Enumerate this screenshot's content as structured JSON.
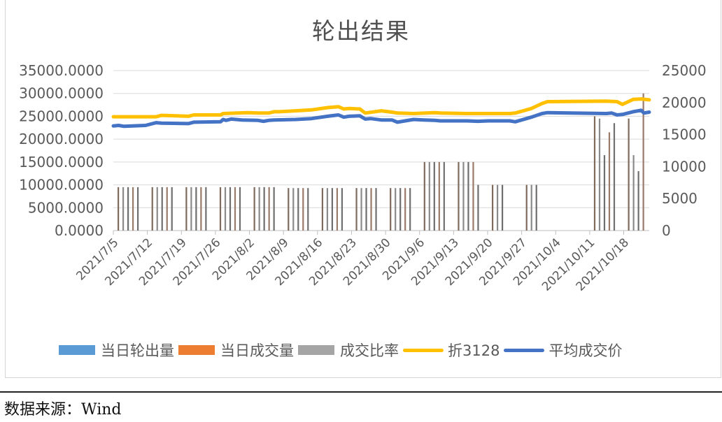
{
  "header": {
    "title": "轮出结果"
  },
  "legend": [
    {
      "label": "当日轮出量",
      "color": "#5b9bd5",
      "kind": "box"
    },
    {
      "label": "当日成交量",
      "color": "#ed7d31",
      "kind": "box"
    },
    {
      "label": "成交比率",
      "color": "#a5a5a5",
      "kind": "box"
    },
    {
      "label": "折3128",
      "color": "#ffc000",
      "kind": "line"
    },
    {
      "label": "平均成交价",
      "color": "#4472c4",
      "kind": "line"
    }
  ],
  "footer": {
    "source": "数据来源：Wind"
  },
  "chart_data": {
    "type": "bar+line",
    "title": "轮出结果",
    "xlabel": "",
    "ylabel_left": "",
    "ylabel_right": "",
    "left_axis": {
      "min": 0,
      "max": 35000,
      "step": 5000,
      "tick_labels": [
        "0.0000",
        "5000.0000",
        "10000.0000",
        "15000.0000",
        "20000.0000",
        "25000.0000",
        "30000.0000",
        "35000.0000"
      ]
    },
    "right_axis": {
      "min": 0,
      "max": 25000,
      "step": 5000,
      "tick_labels": [
        "0",
        "5000",
        "10000",
        "15000",
        "20000",
        "25000"
      ]
    },
    "categories": [
      "2021/7/5",
      "2021/7/12",
      "2021/7/19",
      "2021/7/26",
      "2021/8/2",
      "2021/8/9",
      "2021/8/16",
      "2021/8/23",
      "2021/8/30",
      "2021/9/6",
      "2021/9/13",
      "2021/9/20",
      "2021/9/27",
      "2021/10/4",
      "2021/10/11",
      "2021/10/18"
    ],
    "grid": true,
    "legend_position": "bottom",
    "weekly_bar_groups_left_axis": [
      {
        "week": "2021/7/5",
        "value": 9500,
        "days": 5
      },
      {
        "week": "2021/7/12",
        "value": 9500,
        "days": 5
      },
      {
        "week": "2021/7/19",
        "value": 9500,
        "days": 5
      },
      {
        "week": "2021/7/26",
        "value": 9500,
        "days": 5
      },
      {
        "week": "2021/8/2",
        "value": 9500,
        "days": 5
      },
      {
        "week": "2021/8/9",
        "value": 9300,
        "days": 5
      },
      {
        "week": "2021/8/16",
        "value": 9300,
        "days": 5
      },
      {
        "week": "2021/8/23",
        "value": 9300,
        "days": 5
      },
      {
        "week": "2021/8/30",
        "value": 9300,
        "days": 5
      },
      {
        "week": "2021/9/6",
        "value": 15000,
        "days": 5
      },
      {
        "week": "2021/9/13",
        "value": 15000,
        "days": 4,
        "extra": 10000
      },
      {
        "week": "2021/9/20",
        "value": 10000,
        "days": 3
      },
      {
        "week": "2021/9/27",
        "value": 10000,
        "days": 3
      },
      {
        "week": "2021/10/4",
        "value": 0,
        "days": 0
      },
      {
        "week": "2021/10/11",
        "values": [
          25000,
          24500,
          16500,
          21500,
          23500
        ],
        "days": 5
      },
      {
        "week": "2021/10/18",
        "values": [
          24500,
          16500,
          13000,
          30000
        ],
        "days": 4
      }
    ],
    "series": [
      {
        "name": "折3128",
        "color": "#ffc000",
        "axis": "left_scale_values",
        "x_frac": [
          0,
          0.04,
          0.08,
          0.09,
          0.14,
          0.15,
          0.2,
          0.205,
          0.25,
          0.27,
          0.29,
          0.3,
          0.31,
          0.34,
          0.37,
          0.4,
          0.42,
          0.43,
          0.44,
          0.46,
          0.47,
          0.5,
          0.52,
          0.53,
          0.56,
          0.6,
          0.61,
          0.66,
          0.7,
          0.74,
          0.75,
          0.78,
          0.8,
          0.81,
          0.92,
          0.94,
          0.95,
          0.97,
          0.985,
          1.0
        ],
        "values": [
          24900,
          24900,
          24900,
          25200,
          25000,
          25300,
          25300,
          25600,
          25800,
          25700,
          25700,
          26000,
          26000,
          26200,
          26400,
          26900,
          27100,
          26600,
          26700,
          26600,
          25700,
          26200,
          25900,
          25700,
          25600,
          25800,
          25700,
          25600,
          25600,
          25600,
          25700,
          26700,
          27800,
          28200,
          28300,
          28200,
          27600,
          28700,
          28800,
          28600
        ]
      },
      {
        "name": "平均成交价",
        "color": "#4472c4",
        "axis": "left_scale_values",
        "x_frac": [
          0,
          0.01,
          0.02,
          0.06,
          0.08,
          0.09,
          0.14,
          0.15,
          0.2,
          0.205,
          0.21,
          0.22,
          0.24,
          0.27,
          0.28,
          0.29,
          0.3,
          0.34,
          0.37,
          0.4,
          0.42,
          0.43,
          0.44,
          0.46,
          0.47,
          0.48,
          0.5,
          0.52,
          0.53,
          0.56,
          0.58,
          0.6,
          0.61,
          0.66,
          0.68,
          0.7,
          0.74,
          0.75,
          0.78,
          0.8,
          0.81,
          0.92,
          0.93,
          0.94,
          0.95,
          0.97,
          0.985,
          0.99,
          1.0
        ],
        "values": [
          22900,
          23000,
          22800,
          23000,
          23600,
          23500,
          23400,
          23700,
          23800,
          24300,
          24100,
          24400,
          24200,
          24100,
          23900,
          24100,
          24200,
          24300,
          24500,
          25000,
          25300,
          24800,
          25000,
          25100,
          24400,
          24500,
          24200,
          24200,
          23700,
          24300,
          24200,
          24100,
          24000,
          24000,
          23900,
          24000,
          24000,
          23800,
          24800,
          25600,
          25800,
          25600,
          25700,
          25300,
          25400,
          26000,
          26300,
          25700,
          25900
        ]
      }
    ]
  }
}
